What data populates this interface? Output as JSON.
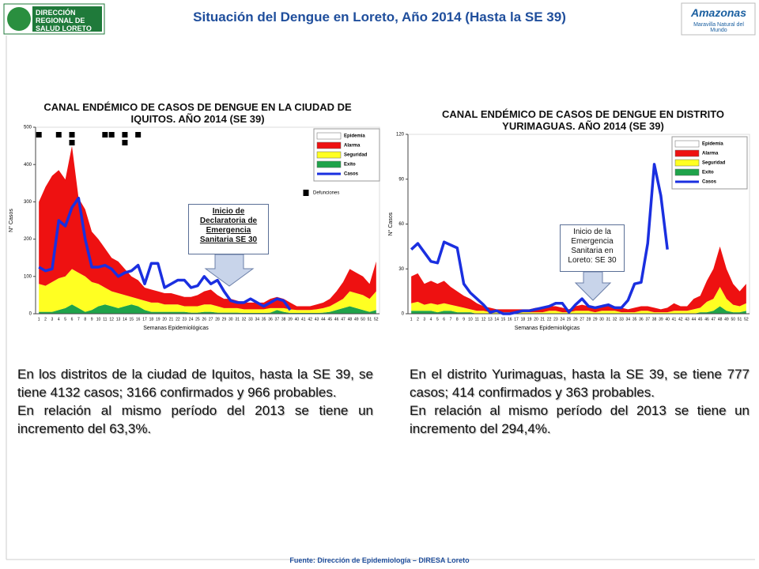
{
  "header": {
    "title": "Situación del Dengue en Loreto, Año 2014 (Hasta la SE 39)",
    "logo_left": "DIRECCIÓN REGIONAL DE SALUD LORETO",
    "logo_right": "Amazonas",
    "logo_right_sub": "Maravilla Natural del Mundo"
  },
  "paragraphs": [
    [
      "En los distritos de la ciudad de Iquitos, hasta la SE 39, se tiene 4132 casos; 3166 confirmados y 966 probables.",
      "En relación al mismo período del 2013 se tiene un incremento del 63,3%."
    ],
    [
      "En el distrito Yurimaguas, hasta la SE 39, se tiene 777 casos; 414 confirmados y 363 probables.",
      "En relación al mismo período del 2013 se tiene un incremento del 294,4%."
    ]
  ],
  "footer": "Fuente: Dirección de Epidemiología – DIRESA Loreto",
  "chart_data": [
    {
      "type": "area",
      "title": "CANAL ENDÉMICO DE CASOS DE DENGUE EN LA CIUDAD DE IQUITOS. AÑO 2014 (SE 39)",
      "y_label": "N° Casos",
      "x_label": "Semanas Epidemiológicas",
      "annotation": "Inicio de Declaratoria de Emergencia Sanitaria SE 30",
      "categories": [
        1,
        2,
        3,
        4,
        5,
        6,
        7,
        8,
        9,
        10,
        11,
        12,
        13,
        14,
        15,
        16,
        17,
        18,
        19,
        20,
        21,
        22,
        23,
        24,
        25,
        26,
        27,
        28,
        29,
        30,
        31,
        32,
        33,
        34,
        35,
        36,
        37,
        38,
        39,
        40,
        41,
        42,
        43,
        44,
        45,
        46,
        47,
        48,
        49,
        50,
        51,
        52
      ],
      "ylim": [
        0,
        500
      ],
      "yticks": [
        0,
        100,
        200,
        300,
        400,
        500
      ],
      "series": [
        {
          "name": "Epidemia",
          "color": "#ffffff",
          "kind": "area"
        },
        {
          "name": "Alarma",
          "color": "#ee1111",
          "kind": "area",
          "values": [
            220,
            265,
            285,
            290,
            260,
            330,
            200,
            180,
            135,
            120,
            105,
            90,
            85,
            70,
            55,
            50,
            35,
            35,
            30,
            30,
            30,
            25,
            25,
            25,
            30,
            35,
            40,
            30,
            25,
            25,
            20,
            18,
            18,
            18,
            18,
            25,
            30,
            25,
            18,
            10,
            10,
            10,
            13,
            15,
            20,
            30,
            45,
            60,
            55,
            50,
            40,
            80
          ]
        },
        {
          "name": "Seguridad",
          "color": "#ffff22",
          "kind": "area",
          "values": [
            75,
            70,
            80,
            85,
            85,
            95,
            95,
            95,
            75,
            60,
            45,
            40,
            40,
            30,
            20,
            20,
            25,
            25,
            25,
            20,
            20,
            20,
            15,
            17,
            17,
            20,
            20,
            17,
            12,
            12,
            12,
            10,
            10,
            10,
            10,
            12,
            5,
            10,
            10,
            8,
            8,
            8,
            10,
            12,
            15,
            20,
            25,
            40,
            40,
            40,
            35,
            50
          ]
        },
        {
          "name": "Exito",
          "color": "#1fa34a",
          "kind": "area",
          "values": [
            5,
            5,
            5,
            10,
            15,
            25,
            15,
            5,
            10,
            20,
            25,
            20,
            15,
            20,
            25,
            20,
            10,
            5,
            5,
            5,
            5,
            5,
            5,
            3,
            3,
            5,
            5,
            3,
            3,
            3,
            3,
            2,
            2,
            2,
            2,
            3,
            10,
            5,
            2,
            2,
            2,
            2,
            2,
            3,
            5,
            10,
            15,
            20,
            15,
            10,
            5,
            10
          ]
        },
        {
          "name": "Casos",
          "color": "#1a2fe0",
          "kind": "line",
          "values": [
            125,
            115,
            120,
            250,
            235,
            285,
            310,
            200,
            125,
            125,
            130,
            120,
            100,
            110,
            115,
            130,
            80,
            135,
            135,
            70,
            80,
            90,
            90,
            70,
            75,
            100,
            80,
            90,
            60,
            35,
            30,
            30,
            40,
            30,
            20,
            30,
            40,
            35,
            10,
            null,
            null,
            null,
            null,
            null,
            null,
            null,
            null,
            null,
            null,
            null,
            null,
            null
          ]
        },
        {
          "name": "Defunciones",
          "color": "#000000",
          "kind": "marker",
          "values": [
            1,
            null,
            null,
            1,
            null,
            2,
            null,
            null,
            null,
            null,
            1,
            1,
            null,
            2,
            null,
            1,
            null,
            null,
            null,
            null,
            null,
            null,
            null,
            null,
            null,
            null,
            null,
            null,
            null,
            null,
            null,
            null,
            null,
            null,
            null,
            null,
            null,
            null,
            null,
            null,
            null,
            null,
            null,
            null,
            null,
            null,
            null,
            null,
            null,
            null,
            null,
            null
          ]
        }
      ]
    },
    {
      "type": "area",
      "title": "CANAL ENDÉMICO DE CASOS DE DENGUE EN DISTRITO YURIMAGUAS. AÑO 2014 (SE 39)",
      "y_label": "N° Casos",
      "x_label": "Semanas Epidemiológicas",
      "annotation": "Inicio de la Emergencia Sanitaria en Loreto: SE 30",
      "categories": [
        1,
        2,
        3,
        4,
        5,
        6,
        7,
        8,
        9,
        10,
        11,
        12,
        13,
        14,
        15,
        16,
        17,
        18,
        19,
        20,
        21,
        22,
        23,
        24,
        25,
        26,
        27,
        28,
        29,
        30,
        31,
        32,
        33,
        34,
        35,
        36,
        37,
        38,
        39,
        40,
        41,
        42,
        43,
        44,
        45,
        46,
        47,
        48,
        49,
        50,
        51,
        52
      ],
      "ylim": [
        0,
        120
      ],
      "yticks": [
        0,
        30,
        60,
        90,
        120
      ],
      "series": [
        {
          "name": "Epidemia",
          "color": "#ffffff",
          "kind": "area"
        },
        {
          "name": "Alarma",
          "color": "#ee1111",
          "kind": "area",
          "values": [
            18,
            19,
            14,
            15,
            14,
            15,
            12,
            10,
            8,
            7,
            5,
            3,
            3,
            2,
            2,
            2,
            2,
            2,
            2,
            3,
            3,
            3,
            3,
            3,
            2,
            3,
            4,
            3,
            3,
            3,
            4,
            3,
            3,
            2,
            3,
            3,
            3,
            3,
            2,
            3,
            5,
            3,
            3,
            7,
            8,
            14,
            20,
            27,
            20,
            14,
            10,
            13
          ]
        },
        {
          "name": "Seguridad",
          "color": "#ffff22",
          "kind": "area",
          "values": [
            5,
            6,
            4,
            5,
            5,
            5,
            4,
            4,
            3,
            2,
            2,
            2,
            1,
            1,
            1,
            1,
            1,
            1,
            1,
            1,
            1,
            2,
            2,
            1,
            1,
            2,
            2,
            2,
            1,
            2,
            2,
            2,
            1,
            1,
            1,
            2,
            2,
            1,
            1,
            1,
            2,
            2,
            2,
            3,
            3,
            7,
            8,
            13,
            8,
            5,
            4,
            5
          ]
        },
        {
          "name": "Exito",
          "color": "#1fa34a",
          "kind": "area",
          "values": [
            2,
            2,
            2,
            2,
            1,
            2,
            2,
            1,
            1,
            1,
            0,
            0,
            0,
            0,
            0,
            0,
            0,
            0,
            0,
            0,
            0,
            0,
            0,
            0,
            0,
            0,
            0,
            0,
            0,
            0,
            0,
            0,
            0,
            0,
            0,
            0,
            0,
            0,
            0,
            0,
            0,
            0,
            0,
            0,
            1,
            1,
            2,
            5,
            2,
            1,
            1,
            2
          ]
        },
        {
          "name": "Casos",
          "color": "#1a2fe0",
          "kind": "line",
          "values": [
            43,
            47,
            41,
            35,
            34,
            48,
            46,
            44,
            20,
            14,
            10,
            6,
            1,
            2,
            0,
            0,
            1,
            2,
            2,
            3,
            4,
            5,
            7,
            7,
            1,
            6,
            10,
            5,
            4,
            5,
            6,
            4,
            4,
            9,
            20,
            21,
            47,
            100,
            79,
            43,
            null,
            null,
            null,
            null,
            null,
            null,
            null,
            null,
            null,
            null,
            null,
            null
          ]
        }
      ]
    }
  ]
}
